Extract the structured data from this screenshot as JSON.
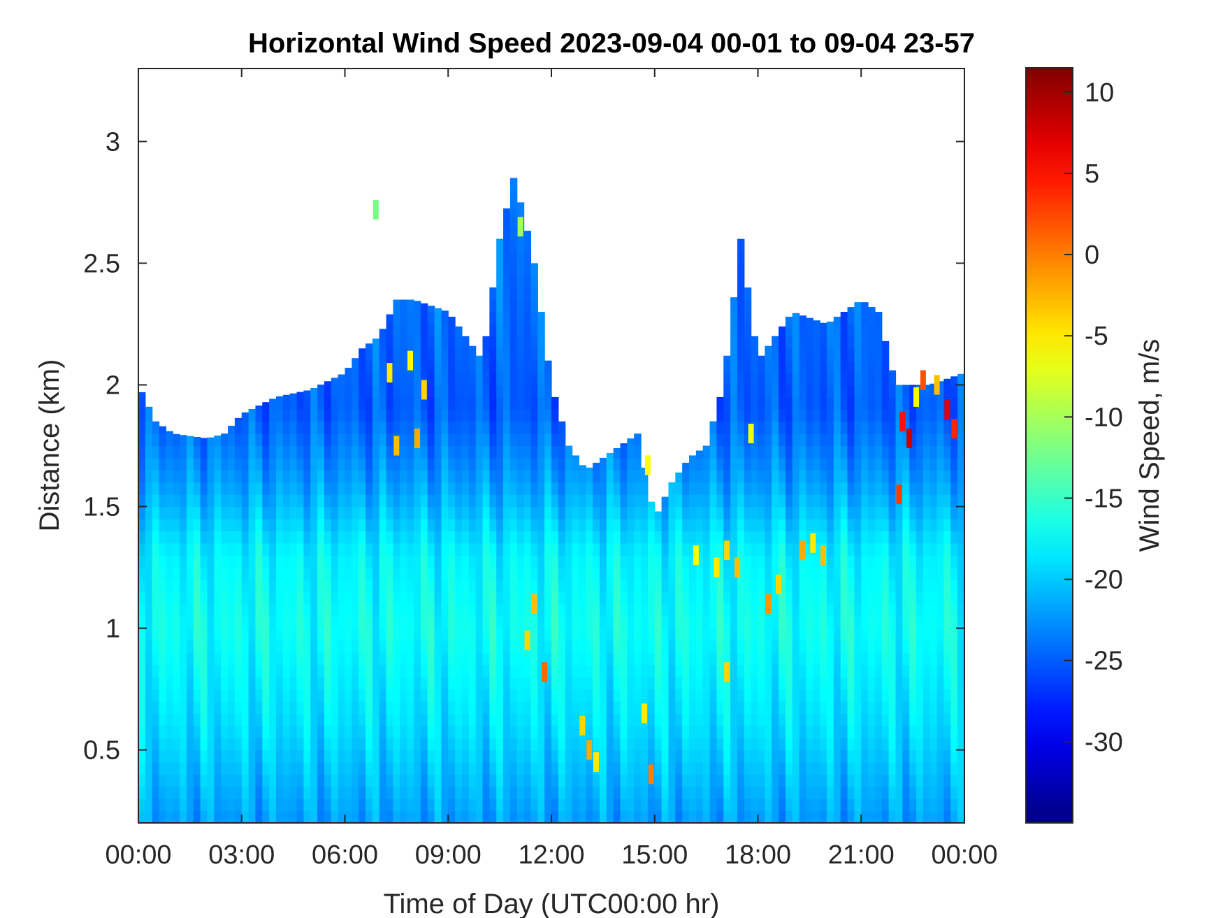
{
  "chart_data": {
    "type": "heatmap",
    "title": "Horizontal Wind Speed 2023-09-04 00-01 to 09-04 23-57",
    "xlabel": "Time of Day (UTC00:00 hr)",
    "ylabel": "Distance (km)",
    "colorbar_label": "Wind Speed, m/s",
    "colormap": "jet",
    "x_range_hours": [
      0,
      24
    ],
    "ylim": [
      0.2,
      3.3
    ],
    "clim": [
      -35,
      11.5
    ],
    "x_ticks": [
      0,
      3,
      6,
      9,
      12,
      15,
      18,
      21,
      24
    ],
    "x_tick_labels": [
      "00:00",
      "03:00",
      "06:00",
      "09:00",
      "12:00",
      "15:00",
      "18:00",
      "21:00",
      "00:00"
    ],
    "y_ticks": [
      0.5,
      1,
      1.5,
      2,
      2.5,
      3
    ],
    "y_tick_labels": [
      "0.5",
      "1",
      "1.5",
      "2",
      "2.5",
      "3"
    ],
    "colorbar_ticks": [
      10,
      5,
      0,
      -5,
      -10,
      -15,
      -20,
      -25,
      -30
    ],
    "colorbar_tick_labels": [
      "10",
      "5",
      "0",
      "-5",
      "-10",
      "-15",
      "-20",
      "-25",
      "-30"
    ],
    "data_top_km": [
      {
        "x": 0.0,
        "top": 2.0
      },
      {
        "x": 0.5,
        "top": 1.85
      },
      {
        "x": 1.0,
        "top": 1.8
      },
      {
        "x": 2.0,
        "top": 1.78
      },
      {
        "x": 2.5,
        "top": 1.8
      },
      {
        "x": 3.0,
        "top": 1.88
      },
      {
        "x": 4.0,
        "top": 1.95
      },
      {
        "x": 5.0,
        "top": 1.98
      },
      {
        "x": 6.0,
        "top": 2.05
      },
      {
        "x": 6.5,
        "top": 2.15
      },
      {
        "x": 7.0,
        "top": 2.2
      },
      {
        "x": 7.5,
        "top": 2.35
      },
      {
        "x": 8.0,
        "top": 2.35
      },
      {
        "x": 9.0,
        "top": 2.3
      },
      {
        "x": 10.0,
        "top": 2.1
      },
      {
        "x": 10.5,
        "top": 2.6
      },
      {
        "x": 10.9,
        "top": 2.85
      },
      {
        "x": 11.2,
        "top": 2.7
      },
      {
        "x": 11.5,
        "top": 2.5
      },
      {
        "x": 12.0,
        "top": 2.0
      },
      {
        "x": 12.5,
        "top": 1.75
      },
      {
        "x": 13.0,
        "top": 1.65
      },
      {
        "x": 13.5,
        "top": 1.7
      },
      {
        "x": 14.0,
        "top": 1.75
      },
      {
        "x": 14.5,
        "top": 1.8
      },
      {
        "x": 15.0,
        "top": 1.45
      },
      {
        "x": 15.5,
        "top": 1.6
      },
      {
        "x": 16.0,
        "top": 1.7
      },
      {
        "x": 16.5,
        "top": 1.75
      },
      {
        "x": 17.0,
        "top": 2.0
      },
      {
        "x": 17.5,
        "top": 2.6
      },
      {
        "x": 18.0,
        "top": 2.1
      },
      {
        "x": 18.5,
        "top": 2.2
      },
      {
        "x": 19.0,
        "top": 2.3
      },
      {
        "x": 20.0,
        "top": 2.25
      },
      {
        "x": 21.0,
        "top": 2.35
      },
      {
        "x": 21.5,
        "top": 2.3
      },
      {
        "x": 22.0,
        "top": 2.0
      },
      {
        "x": 23.0,
        "top": 2.0
      },
      {
        "x": 24.0,
        "top": 2.05
      }
    ],
    "speed_profile": [
      {
        "km": 0.2,
        "ms": -22
      },
      {
        "km": 0.6,
        "ms": -19
      },
      {
        "km": 1.0,
        "ms": -17
      },
      {
        "km": 1.3,
        "ms": -18
      },
      {
        "km": 1.6,
        "ms": -22
      },
      {
        "km": 1.9,
        "ms": -25
      },
      {
        "km": 2.5,
        "ms": -24
      },
      {
        "km": 3.0,
        "ms": -23
      }
    ],
    "highlights": [
      {
        "x": 7.3,
        "y": 2.05,
        "ms": -5
      },
      {
        "x": 7.5,
        "y": 1.75,
        "ms": -3
      },
      {
        "x": 7.9,
        "y": 2.1,
        "ms": -6
      },
      {
        "x": 8.3,
        "y": 1.98,
        "ms": -4
      },
      {
        "x": 8.1,
        "y": 1.78,
        "ms": -2
      },
      {
        "x": 11.1,
        "y": 2.65,
        "ms": -10
      },
      {
        "x": 6.9,
        "y": 2.72,
        "ms": -12
      },
      {
        "x": 11.5,
        "y": 1.1,
        "ms": -3
      },
      {
        "x": 11.8,
        "y": 0.82,
        "ms": 1
      },
      {
        "x": 11.3,
        "y": 0.95,
        "ms": -4
      },
      {
        "x": 12.9,
        "y": 0.6,
        "ms": -4
      },
      {
        "x": 13.1,
        "y": 0.5,
        "ms": -2
      },
      {
        "x": 13.3,
        "y": 0.45,
        "ms": -5
      },
      {
        "x": 14.7,
        "y": 0.65,
        "ms": -5
      },
      {
        "x": 14.9,
        "y": 0.4,
        "ms": 0
      },
      {
        "x": 14.8,
        "y": 1.67,
        "ms": -6
      },
      {
        "x": 16.2,
        "y": 1.3,
        "ms": -6
      },
      {
        "x": 16.8,
        "y": 1.25,
        "ms": -5
      },
      {
        "x": 17.1,
        "y": 1.32,
        "ms": -4
      },
      {
        "x": 17.4,
        "y": 1.25,
        "ms": -3
      },
      {
        "x": 17.8,
        "y": 1.8,
        "ms": -7
      },
      {
        "x": 18.3,
        "y": 1.1,
        "ms": -1
      },
      {
        "x": 18.6,
        "y": 1.18,
        "ms": -4
      },
      {
        "x": 19.3,
        "y": 1.32,
        "ms": -2
      },
      {
        "x": 19.6,
        "y": 1.35,
        "ms": -5
      },
      {
        "x": 19.9,
        "y": 1.3,
        "ms": -3
      },
      {
        "x": 17.1,
        "y": 0.82,
        "ms": -4
      },
      {
        "x": 22.2,
        "y": 1.85,
        "ms": 5
      },
      {
        "x": 22.4,
        "y": 1.78,
        "ms": 8
      },
      {
        "x": 22.1,
        "y": 1.55,
        "ms": 3
      },
      {
        "x": 22.8,
        "y": 2.02,
        "ms": 2
      },
      {
        "x": 23.2,
        "y": 2.0,
        "ms": -3
      },
      {
        "x": 23.5,
        "y": 1.9,
        "ms": 7
      },
      {
        "x": 23.7,
        "y": 1.82,
        "ms": 4
      },
      {
        "x": 22.6,
        "y": 1.95,
        "ms": -6
      }
    ]
  }
}
